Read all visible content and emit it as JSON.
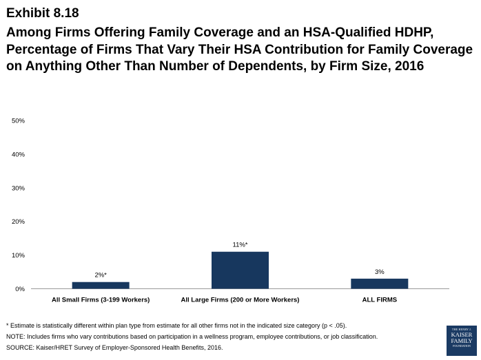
{
  "header": {
    "exhibit": "Exhibit 8.18",
    "title": "Among Firms Offering Family Coverage and an HSA-Qualified HDHP, Percentage of Firms That Vary Their HSA Contribution for Family Coverage on Anything Other Than Number of Dependents, by Firm Size, 2016"
  },
  "chart_data": {
    "type": "bar",
    "categories": [
      "All Small Firms (3-199 Workers)",
      "All Large Firms (200 or More Workers)",
      "ALL FIRMS"
    ],
    "values": [
      2,
      11,
      3
    ],
    "data_labels": [
      "2%*",
      "11%*",
      "3%"
    ],
    "ylim": [
      0,
      50
    ],
    "yticks": [
      0,
      10,
      20,
      30,
      40,
      50
    ],
    "ytick_labels": [
      "0%",
      "10%",
      "20%",
      "30%",
      "40%",
      "50%"
    ],
    "bar_color": "#17375e",
    "grid": false,
    "legend": "none"
  },
  "footnotes": {
    "estimate": "* Estimate is statistically different within plan type from estimate for all other firms not in the indicated size category (p < .05).",
    "note": "NOTE:  Includes firms who vary contributions based on participation in a wellness program, employee contributions, or job classification.",
    "source": "SOURCE:  Kaiser/HRET Survey of Employer-Sponsored Health Benefits, 2016."
  },
  "logo": {
    "line1": "THE HENRY J.",
    "line2": "KAISER",
    "line3": "FAMILY",
    "line4": "FOUNDATION"
  }
}
